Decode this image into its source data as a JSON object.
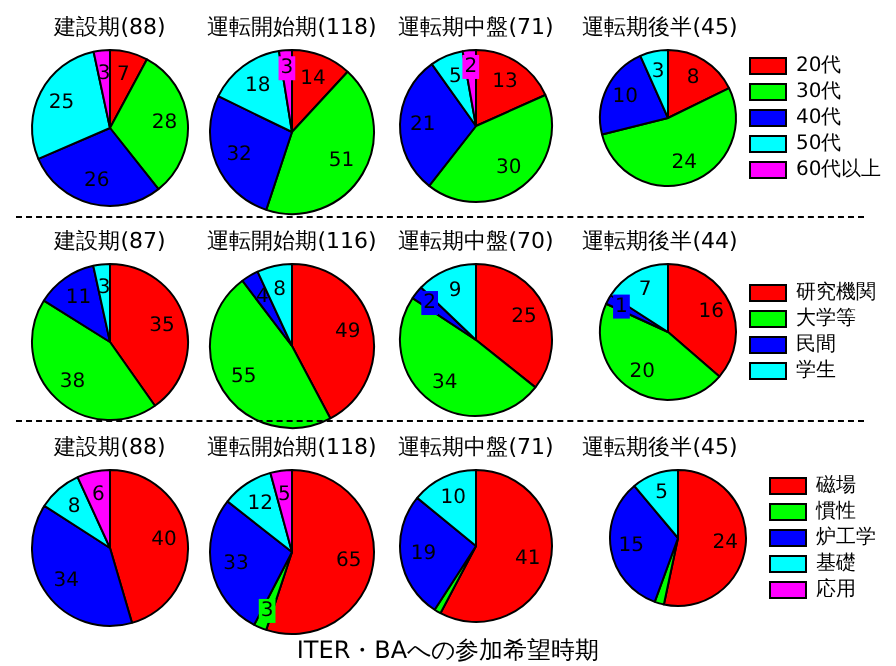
{
  "chart_data": [
    {
      "type": "pie",
      "title": "建設期(88)",
      "categories": [
        null,
        null,
        null,
        null,
        null
      ],
      "values": [
        7,
        28,
        26,
        25,
        3
      ],
      "colors": [
        "#ff0000",
        "#00ff00",
        "#0000ff",
        "#00ffff",
        "#ff00ff"
      ],
      "data_labels": true
    },
    {
      "type": "pie",
      "title": "運転開始期(118)",
      "categories": [
        null,
        null,
        null,
        null,
        null
      ],
      "values": [
        14,
        51,
        32,
        18,
        3
      ],
      "colors": [
        "#ff0000",
        "#00ff00",
        "#0000ff",
        "#00ffff",
        "#ff00ff"
      ],
      "data_labels": true
    },
    {
      "type": "pie",
      "title": "運転期中盤(71)",
      "categories": [
        null,
        null,
        null,
        null,
        null
      ],
      "values": [
        13,
        30,
        21,
        5,
        2
      ],
      "colors": [
        "#ff0000",
        "#00ff00",
        "#0000ff",
        "#00ffff",
        "#ff00ff"
      ],
      "data_labels": true
    },
    {
      "type": "pie",
      "title": "運転期後半(45)",
      "categories": [
        "20代",
        "30代",
        "40代",
        "50代",
        "60代以上"
      ],
      "values": [
        8,
        24,
        10,
        3,
        null
      ],
      "colors": [
        "#ff0000",
        "#00ff00",
        "#0000ff",
        "#00ffff",
        "#ff00ff"
      ],
      "data_labels": true,
      "legend": "right"
    },
    {
      "type": "pie",
      "title": "建設期(87)",
      "categories": [
        null,
        null,
        null,
        null
      ],
      "values": [
        35,
        38,
        11,
        3
      ],
      "colors": [
        "#ff0000",
        "#00ff00",
        "#0000ff",
        "#00ffff"
      ],
      "data_labels": true
    },
    {
      "type": "pie",
      "title": "運転開始期(116)",
      "categories": [
        null,
        null,
        null,
        null
      ],
      "values": [
        49,
        55,
        4,
        8
      ],
      "colors": [
        "#ff0000",
        "#00ff00",
        "#0000ff",
        "#00ffff"
      ],
      "data_labels": true
    },
    {
      "type": "pie",
      "title": "運転期中盤(70)",
      "categories": [
        null,
        null,
        null,
        null
      ],
      "values": [
        25,
        34,
        2,
        9
      ],
      "colors": [
        "#ff0000",
        "#00ff00",
        "#0000ff",
        "#00ffff"
      ],
      "data_labels": true
    },
    {
      "type": "pie",
      "title": "運転期後半(44)",
      "categories": [
        "研究機関",
        "大学等",
        "民間",
        "学生"
      ],
      "values": [
        16,
        20,
        1,
        7
      ],
      "colors": [
        "#ff0000",
        "#00ff00",
        "#0000ff",
        "#00ffff"
      ],
      "data_labels": true,
      "legend": "right"
    },
    {
      "type": "pie",
      "title": "建設期(88)",
      "categories": [
        null,
        null,
        null,
        null,
        null
      ],
      "values": [
        40,
        null,
        34,
        8,
        6
      ],
      "colors": [
        "#ff0000",
        "#00ff00",
        "#0000ff",
        "#00ffff",
        "#ff00ff"
      ],
      "data_labels": true
    },
    {
      "type": "pie",
      "title": "運転開始期(118)",
      "categories": [
        null,
        null,
        null,
        null,
        null
      ],
      "values": [
        65,
        3,
        33,
        12,
        5
      ],
      "colors": [
        "#ff0000",
        "#00ff00",
        "#0000ff",
        "#00ffff",
        "#ff00ff"
      ],
      "data_labels": true
    },
    {
      "type": "pie",
      "title": "運転期中盤(71)",
      "categories": [
        null,
        null,
        null,
        null,
        null
      ],
      "values": [
        41,
        1,
        19,
        10,
        null
      ],
      "colors": [
        "#ff0000",
        "#00ff00",
        "#0000ff",
        "#00ffff",
        "#ff00ff"
      ],
      "value_labels": [
        "41",
        null,
        "19",
        "10",
        null
      ]
    },
    {
      "type": "pie",
      "title": "運転期後半(45)",
      "categories": [
        "磁場",
        "慣性",
        "炉工学",
        "基礎",
        "応用"
      ],
      "values": [
        24,
        1,
        15,
        5,
        null
      ],
      "colors": [
        "#ff0000",
        "#00ff00",
        "#0000ff",
        "#00ffff",
        "#ff00ff"
      ],
      "value_labels": [
        "24",
        null,
        "15",
        "5",
        null
      ],
      "legend": "right",
      "annotations": [
        "ITER・BAへの参加希望時期"
      ]
    }
  ]
}
